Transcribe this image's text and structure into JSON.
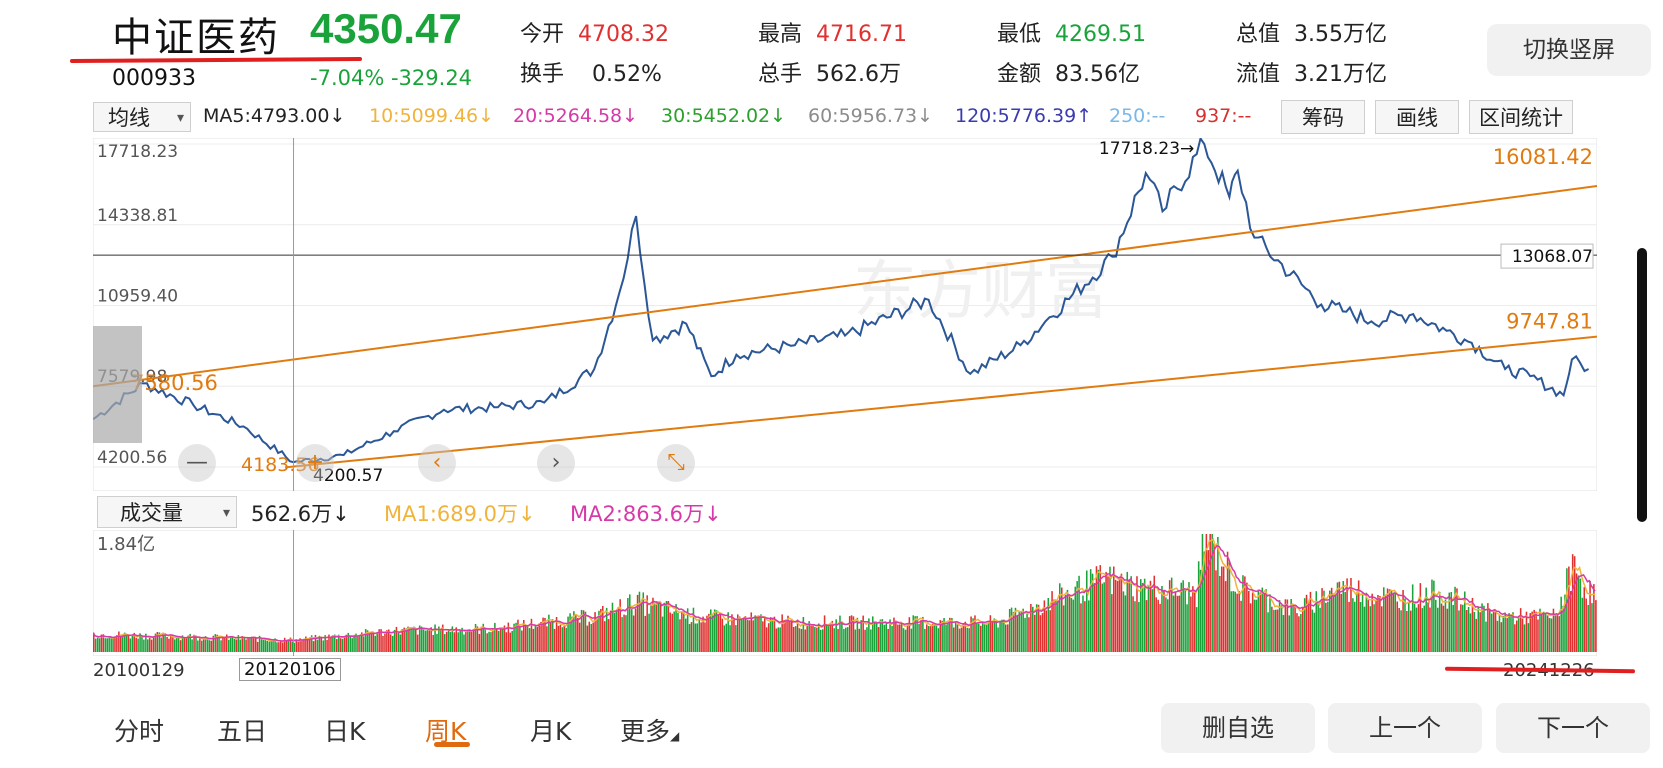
{
  "header": {
    "name": "中证医药",
    "price": "4350.47",
    "code": "000933",
    "change_pct": "-7.04%",
    "change_abs": "-329.24",
    "stats": [
      {
        "label": "今开",
        "value": "4708.32",
        "color": "red"
      },
      {
        "label": "最高",
        "value": "4716.71",
        "color": "red"
      },
      {
        "label": "最低",
        "value": "4269.51",
        "color": "green"
      },
      {
        "label": "总值",
        "value": "3.55万亿",
        "color": "dark"
      },
      {
        "label": "换手",
        "value": "0.52%",
        "color": "dark"
      },
      {
        "label": "总手",
        "value": "562.6万",
        "color": "dark"
      },
      {
        "label": "金额",
        "value": "83.56亿",
        "color": "dark"
      },
      {
        "label": "流值",
        "value": "3.21万亿",
        "color": "dark"
      }
    ],
    "switch_button": "切换竖屏"
  },
  "ma_bar": {
    "select": "均线",
    "items": [
      {
        "text": "MA5:4793.00↓",
        "color": "#222222"
      },
      {
        "text": "10:5099.46↓",
        "color": "#f0b43c"
      },
      {
        "text": "20:5264.58↓",
        "color": "#d63aa8"
      },
      {
        "text": "30:5452.02↓",
        "color": "#2ca02c"
      },
      {
        "text": "60:5956.73↓",
        "color": "#8c8c8c"
      },
      {
        "text": "120:5776.39↑",
        "color": "#3b3bb0"
      },
      {
        "text": "250:--",
        "color": "#7ab8e8"
      },
      {
        "text": "937:--",
        "color": "#d63030"
      }
    ],
    "buttons": [
      "筹码",
      "画线",
      "区间统计"
    ]
  },
  "volume_bar": {
    "select": "成交量",
    "value": "562.6万↓",
    "ma1": "MA1:689.0万↓",
    "ma2": "MA2:863.6万↓"
  },
  "dates": {
    "start": "20100129",
    "cursor": "20120106",
    "end": "20241226"
  },
  "tabs": [
    "分时",
    "五日",
    "日K",
    "周K",
    "月K",
    "更多"
  ],
  "active_tab": "周K",
  "bottom_buttons": [
    "删自选",
    "上一个",
    "下一个"
  ],
  "controls": [
    "—",
    "+",
    "‹",
    "›",
    "⤡"
  ],
  "colors": {
    "up": "#e03030",
    "down": "#1aa33a",
    "price_line": "#2b5797",
    "trend_line": "#e07b10",
    "accent": "#e06a10"
  },
  "chart_data": [
    {
      "type": "line",
      "series": [
        {
          "x": [
            "2010-01",
            "2010-07",
            "2011-01",
            "2011-07",
            "2012-01",
            "2012-07",
            "2013-01",
            "2013-07",
            "2014-01",
            "2014-07",
            "2015-01",
            "2015-04",
            "2015-06",
            "2015-08",
            "2015-12",
            "2016-03",
            "2016-06",
            "2017-01",
            "2017-07",
            "2018-05",
            "2018-10",
            "2019-04",
            "2019-07",
            "2020-03",
            "2020-07",
            "2020-09",
            "2021-02",
            "2021-05",
            "2021-06",
            "2021-08",
            "2022-04",
            "2022-07",
            "2022-10",
            "2023-03",
            "2023-07",
            "2023-10",
            "2024-02",
            "2024-05",
            "2024-09",
            "2024-10",
            "2024-12"
          ],
          "values": [
            6200,
            7700,
            6800,
            5900,
            4400,
            4700,
            5700,
            6600,
            6700,
            6900,
            8300,
            11500,
            14700,
            9500,
            10200,
            8000,
            8900,
            9300,
            9700,
            11200,
            8100,
            9300,
            10300,
            13000,
            16500,
            14900,
            17718.23,
            15500,
            16600,
            13800,
            11000,
            10700,
            10300,
            10600,
            9900,
            9400,
            8300,
            8000,
            7200,
            8700,
            8300
          ]
        }
      ],
      "annotations": [
        "17718.23",
        "16081.42",
        "13068.07",
        "9747.81",
        "7580.56",
        "4183.56",
        "4200.57"
      ],
      "y_ticks": [
        "17718.23",
        "14338.81",
        "10959.40",
        "7579.98",
        "4200.56"
      ],
      "ylim": [
        4200.56,
        17718.23
      ],
      "crosshair": "13068.07",
      "trend_lines": [
        {
          "from": [
            "2010-01",
            7580.56
          ],
          "to": [
            "2024-12",
            16081.42
          ]
        },
        {
          "from": [
            "2011-12",
            4183.56
          ],
          "to": [
            "2024-12",
            9747.81
          ]
        }
      ]
    },
    {
      "type": "bar",
      "title": "成交量",
      "y_ticks": [
        "1.84亿"
      ],
      "x_labels": [
        "20100129",
        "20120106",
        "20241226"
      ],
      "series": [
        {
          "name": "MA1",
          "color": "#f0b43c"
        },
        {
          "name": "MA2",
          "color": "#d63aa8"
        }
      ],
      "volume_profile": {
        "x": [
          "2010-01",
          "2011-01",
          "2012-01",
          "2013-01",
          "2014-01",
          "2015-01",
          "2015-06",
          "2016-01",
          "2017-01",
          "2018-01",
          "2019-01",
          "2020-02",
          "2020-06",
          "2021-01",
          "2021-02",
          "2021-06",
          "2022-01",
          "2022-06",
          "2023-01",
          "2023-06",
          "2024-01",
          "2024-08",
          "2024-10",
          "2024-12"
        ],
        "values": [
          0.15,
          0.13,
          0.1,
          0.18,
          0.2,
          0.3,
          0.42,
          0.3,
          0.25,
          0.25,
          0.25,
          0.62,
          0.55,
          0.5,
          1.0,
          0.55,
          0.35,
          0.55,
          0.45,
          0.5,
          0.3,
          0.3,
          0.72,
          0.5
        ]
      }
    }
  ]
}
